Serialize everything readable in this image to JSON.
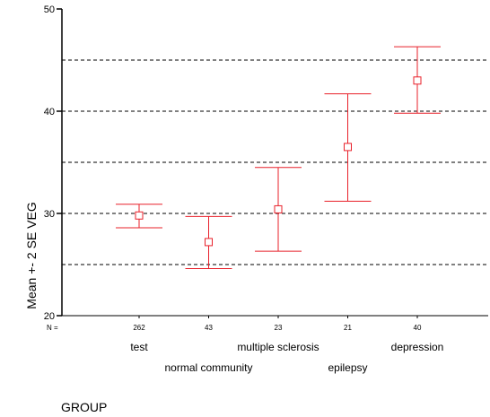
{
  "chart_data": {
    "type": "errorbar",
    "ylabel": "Mean +- 2 SE VEG",
    "xlabel": "GROUP",
    "n_label": "N =",
    "ylim": [
      20,
      50
    ],
    "yticks": [
      20,
      30,
      40,
      50
    ],
    "dashed_gridlines": [
      25,
      30,
      35,
      40,
      45
    ],
    "series_color": "#e8202a",
    "categories": [
      {
        "label": "test",
        "n": "262",
        "mean": 29.8,
        "lower": 28.6,
        "upper": 30.9,
        "label_row": 1
      },
      {
        "label": "normal community",
        "n": "43",
        "mean": 27.2,
        "lower": 24.6,
        "upper": 29.7,
        "label_row": 2
      },
      {
        "label": "multiple sclerosis",
        "n": "23",
        "mean": 30.4,
        "lower": 26.3,
        "upper": 34.5,
        "label_row": 1
      },
      {
        "label": "epilepsy",
        "n": "21",
        "mean": 36.5,
        "lower": 31.2,
        "upper": 41.7,
        "label_row": 2
      },
      {
        "label": "depression",
        "n": "40",
        "mean": 43.0,
        "lower": 39.8,
        "upper": 46.3,
        "label_row": 1
      }
    ]
  }
}
